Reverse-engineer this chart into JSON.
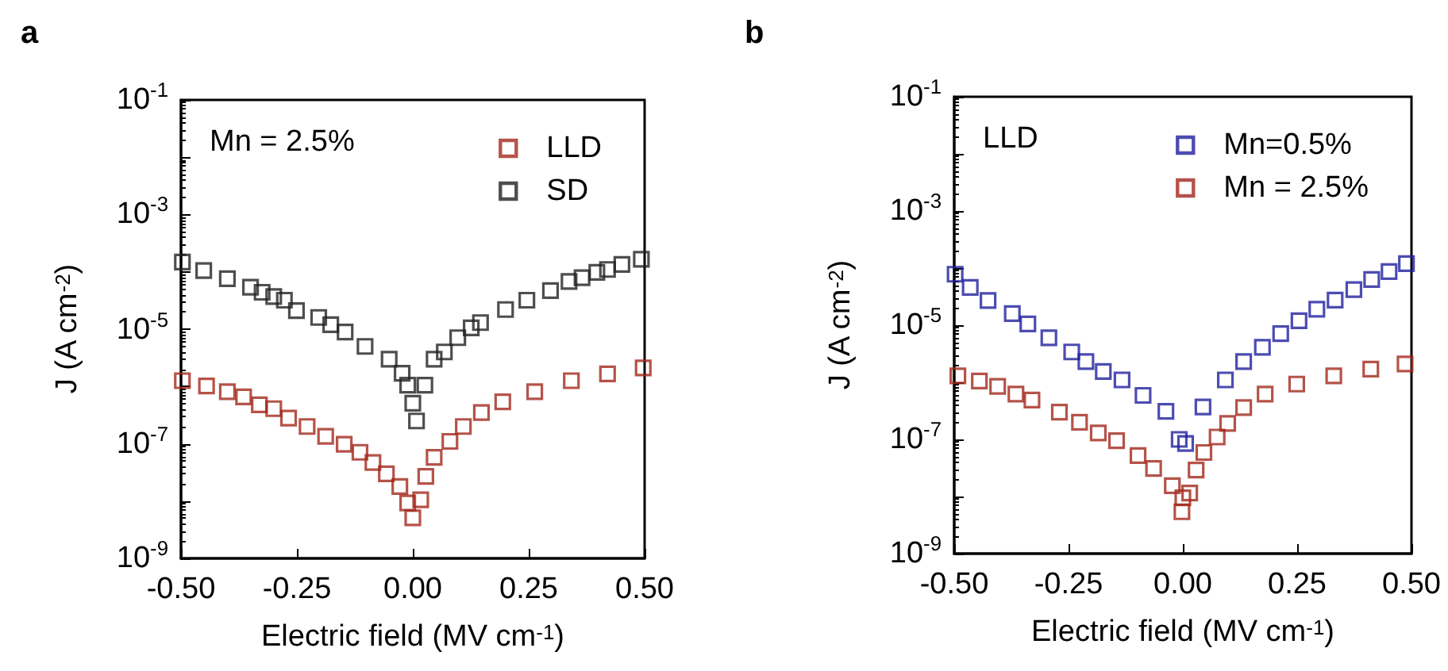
{
  "chart_data": [
    {
      "type": "scatter",
      "title": "a",
      "xlabel": "Electric field (MV cm$^{-1}$)",
      "ylabel": "J (A cm$^{-2}$)",
      "annotations": [
        "Mn = 2.5%"
      ],
      "log": "y",
      "marker": "square",
      "legend": "top right",
      "grid": false,
      "xlim": [
        -0.5,
        0.5
      ],
      "xticks": [
        {
          "value": -0.5,
          "label": "-0.50"
        },
        {
          "value": -0.25,
          "label": "-0.25"
        },
        {
          "value": 0,
          "label": "0.00"
        },
        {
          "value": 0.25,
          "label": "0.25"
        },
        {
          "value": 0.5,
          "label": "0.50"
        }
      ],
      "ylim": [
        1e-09,
        0.1
      ],
      "yticks": [
        {
          "value": 1e-09,
          "label": "10$^{-9}$"
        },
        {
          "value": 1e-08,
          "label": null
        },
        {
          "value": 1e-07,
          "label": "10$^{-7}$"
        },
        {
          "value": 1e-06,
          "label": null
        },
        {
          "value": 1e-05,
          "label": "10$^{-5}$"
        },
        {
          "value": 0.0001,
          "label": null
        },
        {
          "value": 0.001,
          "label": "10$^{-3}$"
        },
        {
          "value": 0.01,
          "label": null
        },
        {
          "value": 0.1,
          "label": "10$^{-1}$"
        }
      ],
      "series": [
        {
          "name": "LLD",
          "color": "#a3281c",
          "x": [
            -0.497,
            -0.445,
            -0.4,
            -0.365,
            -0.331,
            -0.3,
            -0.268,
            -0.228,
            -0.188,
            -0.148,
            -0.114,
            -0.086,
            -0.057,
            -0.028,
            -0.011,
            0.0,
            0.017,
            0.028,
            0.046,
            0.08,
            0.109,
            0.148,
            0.194,
            0.263,
            0.342,
            0.42,
            0.497
          ],
          "values": [
            1.26e-06,
            1.02e-06,
            8.1e-07,
            6.6e-07,
            4.8e-07,
            4.1e-07,
            2.8e-07,
            2e-07,
            1.35e-07,
            9.8e-08,
            7.1e-08,
            4.7e-08,
            3e-08,
            1.8e-08,
            9.3e-09,
            5.1e-09,
            1.05e-08,
            2.7e-08,
            5.8e-08,
            1.1e-07,
            2e-07,
            3.5e-07,
            5.4e-07,
            8.1e-07,
            1.26e-06,
            1.66e-06,
            2.1e-06
          ]
        },
        {
          "name": "SD",
          "color": "#222222",
          "x": [
            -0.497,
            -0.451,
            -0.4,
            -0.35,
            -0.325,
            -0.3,
            -0.277,
            -0.251,
            -0.203,
            -0.177,
            -0.146,
            -0.103,
            -0.051,
            -0.023,
            -0.011,
            0.0,
            0.008,
            0.026,
            0.046,
            0.068,
            0.097,
            0.126,
            0.146,
            0.2,
            0.246,
            0.297,
            0.337,
            0.365,
            0.397,
            0.42,
            0.451,
            0.493
          ],
          "values": [
            0.000148,
            0.000105,
            7.6e-05,
            5.4e-05,
            4.4e-05,
            3.7e-05,
            3.2e-05,
            2.1e-05,
            1.6e-05,
            1.2e-05,
            8.9e-06,
            5e-06,
            3e-06,
            1.7e-06,
            1.05e-06,
            5.1e-07,
            2.5e-07,
            1.05e-06,
            3e-06,
            4e-06,
            7.1e-06,
            1.05e-05,
            1.3e-05,
            2.2e-05,
            3.2e-05,
            4.7e-05,
            6.8e-05,
            7.9e-05,
            9.8e-05,
            0.00011,
            0.000135,
            0.000166
          ]
        }
      ]
    },
    {
      "type": "scatter",
      "title": "b",
      "xlabel": "Electric field (MV cm$^{-1}$)",
      "ylabel": "J (A cm$^{-2}$)",
      "annotations": [
        "LLD"
      ],
      "log": "y",
      "marker": "square",
      "legend": "top right",
      "grid": false,
      "xlim": [
        -0.5,
        0.5
      ],
      "xticks": [
        {
          "value": -0.5,
          "label": "-0.50"
        },
        {
          "value": -0.25,
          "label": "-0.25"
        },
        {
          "value": 0,
          "label": "0.00"
        },
        {
          "value": 0.25,
          "label": "0.25"
        },
        {
          "value": 0.5,
          "label": "0.50"
        }
      ],
      "ylim": [
        1e-09,
        0.1
      ],
      "yticks": [
        {
          "value": 1e-09,
          "label": "10$^{-9}$"
        },
        {
          "value": 1e-08,
          "label": null
        },
        {
          "value": 1e-07,
          "label": "10$^{-7}$"
        },
        {
          "value": 1e-06,
          "label": null
        },
        {
          "value": 1e-05,
          "label": "10$^{-5}$"
        },
        {
          "value": 0.0001,
          "label": null
        },
        {
          "value": 0.001,
          "label": "10$^{-3}$"
        },
        {
          "value": 0.01,
          "label": null
        },
        {
          "value": 0.1,
          "label": "10$^{-1}$"
        }
      ],
      "series": [
        {
          "name": "Mn=0.5%",
          "color": "#1f1f9e",
          "x": [
            -0.498,
            -0.465,
            -0.426,
            -0.373,
            -0.339,
            -0.293,
            -0.243,
            -0.212,
            -0.174,
            -0.133,
            -0.087,
            -0.037,
            -0.008,
            0.006,
            0.044,
            0.093,
            0.133,
            0.174,
            0.214,
            0.254,
            0.293,
            0.333,
            0.374,
            0.413,
            0.451,
            0.489
          ],
          "values": [
            7.8e-05,
            4.6e-05,
            2.7e-05,
            1.6e-05,
            1.05e-05,
            6e-06,
            3.4e-06,
            2.3e-06,
            1.55e-06,
            1.1e-06,
            5.9e-07,
            3.1e-07,
            1e-07,
            8.5e-08,
            3.7e-07,
            1.1e-06,
            2.3e-06,
            4.1e-06,
            7.1e-06,
            1.2e-05,
            1.9e-05,
            2.75e-05,
            4.2e-05,
            6.3e-05,
            8.7e-05,
            0.00012
          ]
        },
        {
          "name": "Mn = 2.5%",
          "color": "#a3281c",
          "x": [
            -0.492,
            -0.445,
            -0.405,
            -0.365,
            -0.33,
            -0.27,
            -0.226,
            -0.185,
            -0.145,
            -0.098,
            -0.064,
            -0.023,
            -0.002,
            0.0,
            0.015,
            0.029,
            0.046,
            0.075,
            0.098,
            0.133,
            0.18,
            0.249,
            0.33,
            0.411,
            0.486
          ],
          "values": [
            1.3e-06,
            1.05e-06,
            8.5e-07,
            6.2e-07,
            4.9e-07,
            3e-07,
            2e-07,
            1.3e-07,
            9.5e-08,
            5.2e-08,
            3.1e-08,
            1.55e-08,
            5.4e-09,
            9.5e-09,
            1.15e-08,
            2.9e-08,
            5.9e-08,
            1.1e-07,
            1.9e-07,
            3.6e-07,
            6.2e-07,
            9.3e-07,
            1.3e-06,
            1.7e-06,
            2.1e-06
          ]
        }
      ]
    }
  ]
}
